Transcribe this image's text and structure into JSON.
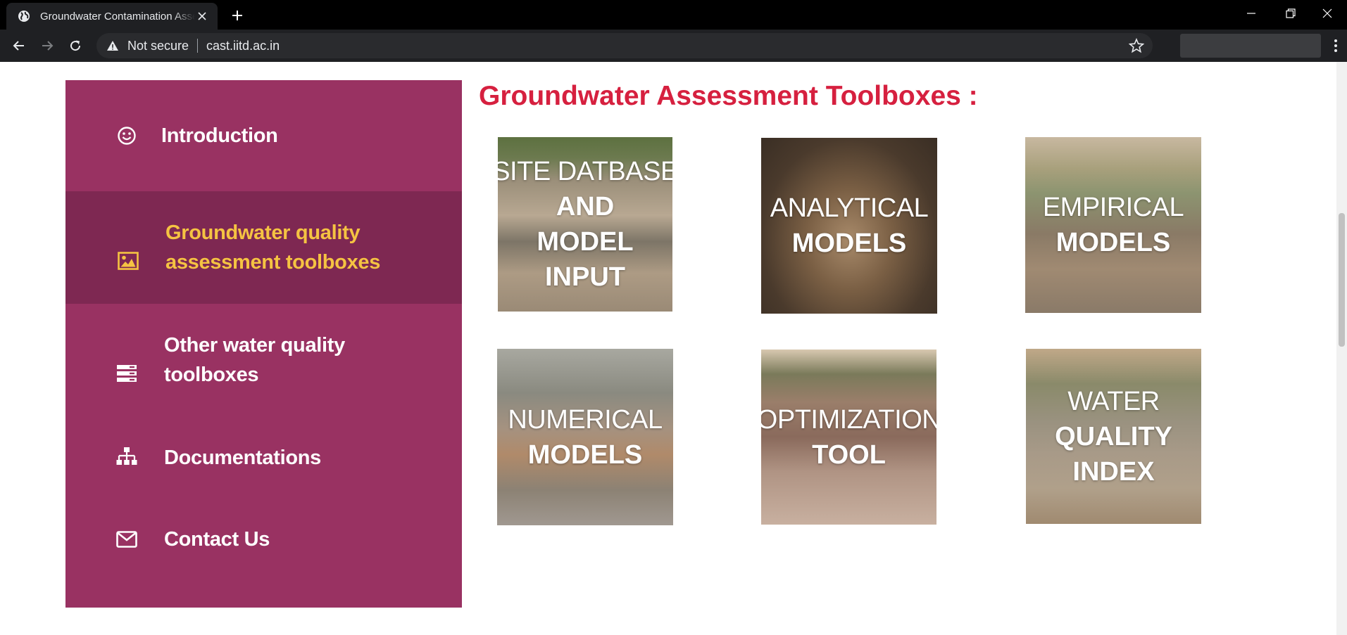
{
  "browser": {
    "tab_title": "Groundwater Contamination Assessment",
    "security_label": "Not secure",
    "url": "cast.iitd.ac.in"
  },
  "sidebar": {
    "items": [
      {
        "label": "Introduction",
        "icon": "smile-icon"
      },
      {
        "label": "Groundwater quality assessment toolboxes",
        "line1": "Groundwater quality",
        "line2": "assessment toolboxes",
        "icon": "image-icon",
        "active": true
      },
      {
        "label": "Other water quality toolboxes",
        "line1": "Other water quality",
        "line2": "toolboxes",
        "icon": "server-icon"
      },
      {
        "label": "Documentations",
        "icon": "sitemap-icon"
      },
      {
        "label": "Contact Us",
        "icon": "envelope-icon"
      }
    ]
  },
  "main": {
    "heading": "Groundwater Assessment Toolboxes :",
    "tiles": [
      {
        "light": "SITE DATBASE",
        "bold": [
          "AND",
          "MODEL",
          "INPUT"
        ]
      },
      {
        "light": "ANALYTICAL",
        "bold": [
          "MODELS"
        ]
      },
      {
        "light": "EMPIRICAL",
        "bold": [
          "MODELS"
        ]
      },
      {
        "light": "NUMERICAL",
        "bold": [
          "MODELS"
        ]
      },
      {
        "light": "OPTIMIZATION",
        "bold": [
          "TOOL"
        ]
      },
      {
        "light": "WATER",
        "bold": [
          "QUALITY",
          "INDEX"
        ]
      }
    ]
  },
  "colors": {
    "sidebar_bg": "#993262",
    "sidebar_active_bg": "#7e2852",
    "active_text": "#f5c342",
    "heading": "#d6203f"
  }
}
